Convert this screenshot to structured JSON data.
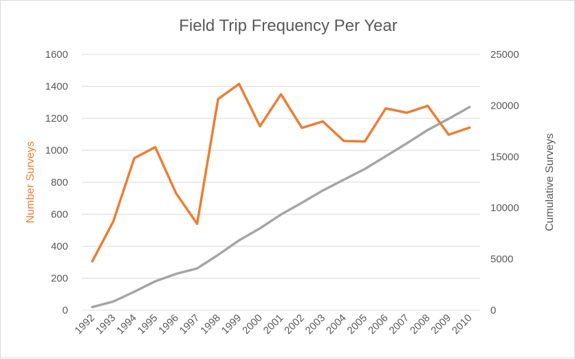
{
  "chart_data": {
    "type": "line",
    "title": "Field Trip Frequency  Per Year",
    "categories": [
      "1992",
      "1993",
      "1994",
      "1995",
      "1996",
      "1997",
      "1998",
      "1999",
      "2000",
      "2001",
      "2002",
      "2003",
      "2004",
      "2005",
      "2006",
      "2007",
      "2008",
      "2009",
      "2010"
    ],
    "y_left": {
      "label": "Number Surveys",
      "ylim": [
        0,
        1600
      ],
      "ticks": [
        0,
        200,
        400,
        600,
        800,
        1000,
        1200,
        1400,
        1600
      ],
      "tick_labels": [
        "0",
        "200",
        "400",
        "600",
        "800",
        "1000",
        "1200",
        "1400",
        "1600"
      ]
    },
    "y_right": {
      "label": "Cumulative Surveys",
      "ylim": [
        0,
        25000
      ],
      "ticks": [
        0,
        5000,
        10000,
        15000,
        20000,
        25000
      ],
      "tick_labels": [
        "0",
        "5000",
        "10000",
        "15000",
        "20000",
        "25000"
      ]
    },
    "series": [
      {
        "axis": "left",
        "color": "#ED7D31",
        "values": [
          305,
          555,
          950,
          1020,
          730,
          540,
          1320,
          1415,
          1150,
          1350,
          1140,
          1180,
          1058,
          1055,
          1262,
          1235,
          1278,
          1097,
          1142
        ]
      },
      {
        "axis": "right",
        "color": "#A5A5A5",
        "values": [
          300,
          850,
          1800,
          2820,
          3550,
          4080,
          5400,
          6820,
          8000,
          9350,
          10500,
          11700,
          12750,
          13800,
          15050,
          16300,
          17600,
          18700,
          19850
        ]
      }
    ],
    "grid": true,
    "legend": "none"
  }
}
